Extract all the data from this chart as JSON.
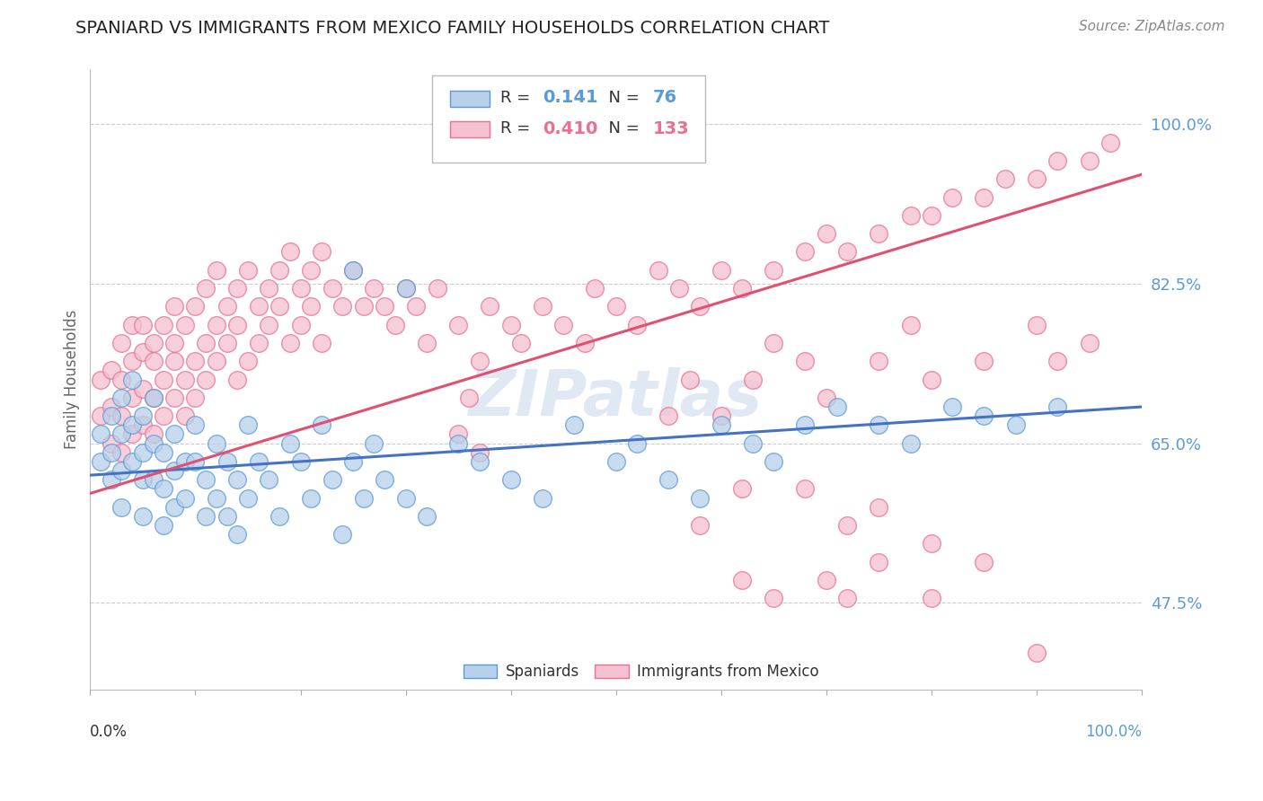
{
  "title": "SPANIARD VS IMMIGRANTS FROM MEXICO FAMILY HOUSEHOLDS CORRELATION CHART",
  "source": "Source: ZipAtlas.com",
  "ylabel": "Family Households",
  "ytick_labels": [
    "47.5%",
    "65.0%",
    "82.5%",
    "100.0%"
  ],
  "ytick_values": [
    0.475,
    0.65,
    0.825,
    1.0
  ],
  "legend_blue_r": "0.141",
  "legend_blue_n": "76",
  "legend_pink_r": "0.410",
  "legend_pink_n": "133",
  "blue_fill": "#b8d0ea",
  "blue_edge": "#5b9bd5",
  "pink_fill": "#f5c0cf",
  "pink_edge": "#e87090",
  "blue_line": "#4472c4",
  "pink_line": "#e05070",
  "grid_color": "#cccccc",
  "watermark_color": "#ccdaeb",
  "blue_slope": 0.075,
  "blue_intercept": 0.615,
  "pink_slope": 0.35,
  "pink_intercept": 0.595,
  "xlim": [
    0.0,
    1.0
  ],
  "ylim": [
    0.38,
    1.06
  ],
  "blue_x": [
    0.01,
    0.01,
    0.02,
    0.02,
    0.02,
    0.03,
    0.03,
    0.03,
    0.03,
    0.04,
    0.04,
    0.04,
    0.05,
    0.05,
    0.05,
    0.05,
    0.06,
    0.06,
    0.06,
    0.07,
    0.07,
    0.07,
    0.08,
    0.08,
    0.08,
    0.09,
    0.09,
    0.1,
    0.1,
    0.11,
    0.11,
    0.12,
    0.12,
    0.13,
    0.13,
    0.14,
    0.14,
    0.15,
    0.15,
    0.16,
    0.17,
    0.18,
    0.19,
    0.2,
    0.21,
    0.22,
    0.23,
    0.24,
    0.25,
    0.26,
    0.27,
    0.28,
    0.3,
    0.32,
    0.35,
    0.37,
    0.4,
    0.43,
    0.46,
    0.5,
    0.52,
    0.55,
    0.58,
    0.6,
    0.63,
    0.65,
    0.68,
    0.71,
    0.75,
    0.78,
    0.82,
    0.85,
    0.88,
    0.92,
    0.25,
    0.3
  ],
  "blue_y": [
    0.66,
    0.63,
    0.68,
    0.64,
    0.61,
    0.7,
    0.66,
    0.62,
    0.58,
    0.72,
    0.67,
    0.63,
    0.68,
    0.64,
    0.61,
    0.57,
    0.65,
    0.61,
    0.7,
    0.64,
    0.6,
    0.56,
    0.62,
    0.58,
    0.66,
    0.63,
    0.59,
    0.67,
    0.63,
    0.61,
    0.57,
    0.65,
    0.59,
    0.63,
    0.57,
    0.61,
    0.55,
    0.67,
    0.59,
    0.63,
    0.61,
    0.57,
    0.65,
    0.63,
    0.59,
    0.67,
    0.61,
    0.55,
    0.63,
    0.59,
    0.65,
    0.61,
    0.59,
    0.57,
    0.65,
    0.63,
    0.61,
    0.59,
    0.67,
    0.63,
    0.65,
    0.61,
    0.59,
    0.67,
    0.65,
    0.63,
    0.67,
    0.69,
    0.67,
    0.65,
    0.69,
    0.68,
    0.67,
    0.69,
    0.84,
    0.82
  ],
  "pink_x": [
    0.01,
    0.01,
    0.02,
    0.02,
    0.02,
    0.03,
    0.03,
    0.03,
    0.03,
    0.04,
    0.04,
    0.04,
    0.04,
    0.05,
    0.05,
    0.05,
    0.05,
    0.06,
    0.06,
    0.06,
    0.06,
    0.07,
    0.07,
    0.07,
    0.08,
    0.08,
    0.08,
    0.08,
    0.09,
    0.09,
    0.09,
    0.1,
    0.1,
    0.1,
    0.11,
    0.11,
    0.11,
    0.12,
    0.12,
    0.12,
    0.13,
    0.13,
    0.14,
    0.14,
    0.14,
    0.15,
    0.15,
    0.16,
    0.16,
    0.17,
    0.17,
    0.18,
    0.18,
    0.19,
    0.19,
    0.2,
    0.2,
    0.21,
    0.21,
    0.22,
    0.22,
    0.23,
    0.24,
    0.25,
    0.26,
    0.27,
    0.28,
    0.29,
    0.3,
    0.31,
    0.32,
    0.33,
    0.35,
    0.37,
    0.38,
    0.4,
    0.41,
    0.43,
    0.45,
    0.47,
    0.48,
    0.5,
    0.52,
    0.54,
    0.56,
    0.58,
    0.6,
    0.62,
    0.65,
    0.68,
    0.7,
    0.72,
    0.75,
    0.78,
    0.8,
    0.82,
    0.85,
    0.87,
    0.9,
    0.92,
    0.95,
    0.97,
    0.35,
    0.36,
    0.37,
    0.55,
    0.57,
    0.6,
    0.63,
    0.65,
    0.68,
    0.7,
    0.75,
    0.78,
    0.8,
    0.85,
    0.9,
    0.92,
    0.95,
    0.58,
    0.62,
    0.68,
    0.72,
    0.75,
    0.8,
    0.85,
    0.9,
    0.62,
    0.65,
    0.7,
    0.72,
    0.75,
    0.8
  ],
  "pink_y": [
    0.68,
    0.72,
    0.73,
    0.69,
    0.65,
    0.76,
    0.72,
    0.68,
    0.64,
    0.78,
    0.74,
    0.7,
    0.66,
    0.75,
    0.71,
    0.67,
    0.78,
    0.74,
    0.7,
    0.66,
    0.76,
    0.72,
    0.68,
    0.78,
    0.74,
    0.7,
    0.8,
    0.76,
    0.72,
    0.68,
    0.78,
    0.74,
    0.7,
    0.8,
    0.76,
    0.72,
    0.82,
    0.78,
    0.74,
    0.84,
    0.8,
    0.76,
    0.72,
    0.82,
    0.78,
    0.74,
    0.84,
    0.8,
    0.76,
    0.82,
    0.78,
    0.84,
    0.8,
    0.76,
    0.86,
    0.82,
    0.78,
    0.84,
    0.8,
    0.76,
    0.86,
    0.82,
    0.8,
    0.84,
    0.8,
    0.82,
    0.8,
    0.78,
    0.82,
    0.8,
    0.76,
    0.82,
    0.78,
    0.74,
    0.8,
    0.78,
    0.76,
    0.8,
    0.78,
    0.76,
    0.82,
    0.8,
    0.78,
    0.84,
    0.82,
    0.8,
    0.84,
    0.82,
    0.84,
    0.86,
    0.88,
    0.86,
    0.88,
    0.9,
    0.9,
    0.92,
    0.92,
    0.94,
    0.94,
    0.96,
    0.96,
    0.98,
    0.66,
    0.7,
    0.64,
    0.68,
    0.72,
    0.68,
    0.72,
    0.76,
    0.74,
    0.7,
    0.74,
    0.78,
    0.72,
    0.74,
    0.78,
    0.74,
    0.76,
    0.56,
    0.6,
    0.6,
    0.56,
    0.58,
    0.54,
    0.52,
    0.42,
    0.5,
    0.48,
    0.5,
    0.48,
    0.52,
    0.48
  ]
}
